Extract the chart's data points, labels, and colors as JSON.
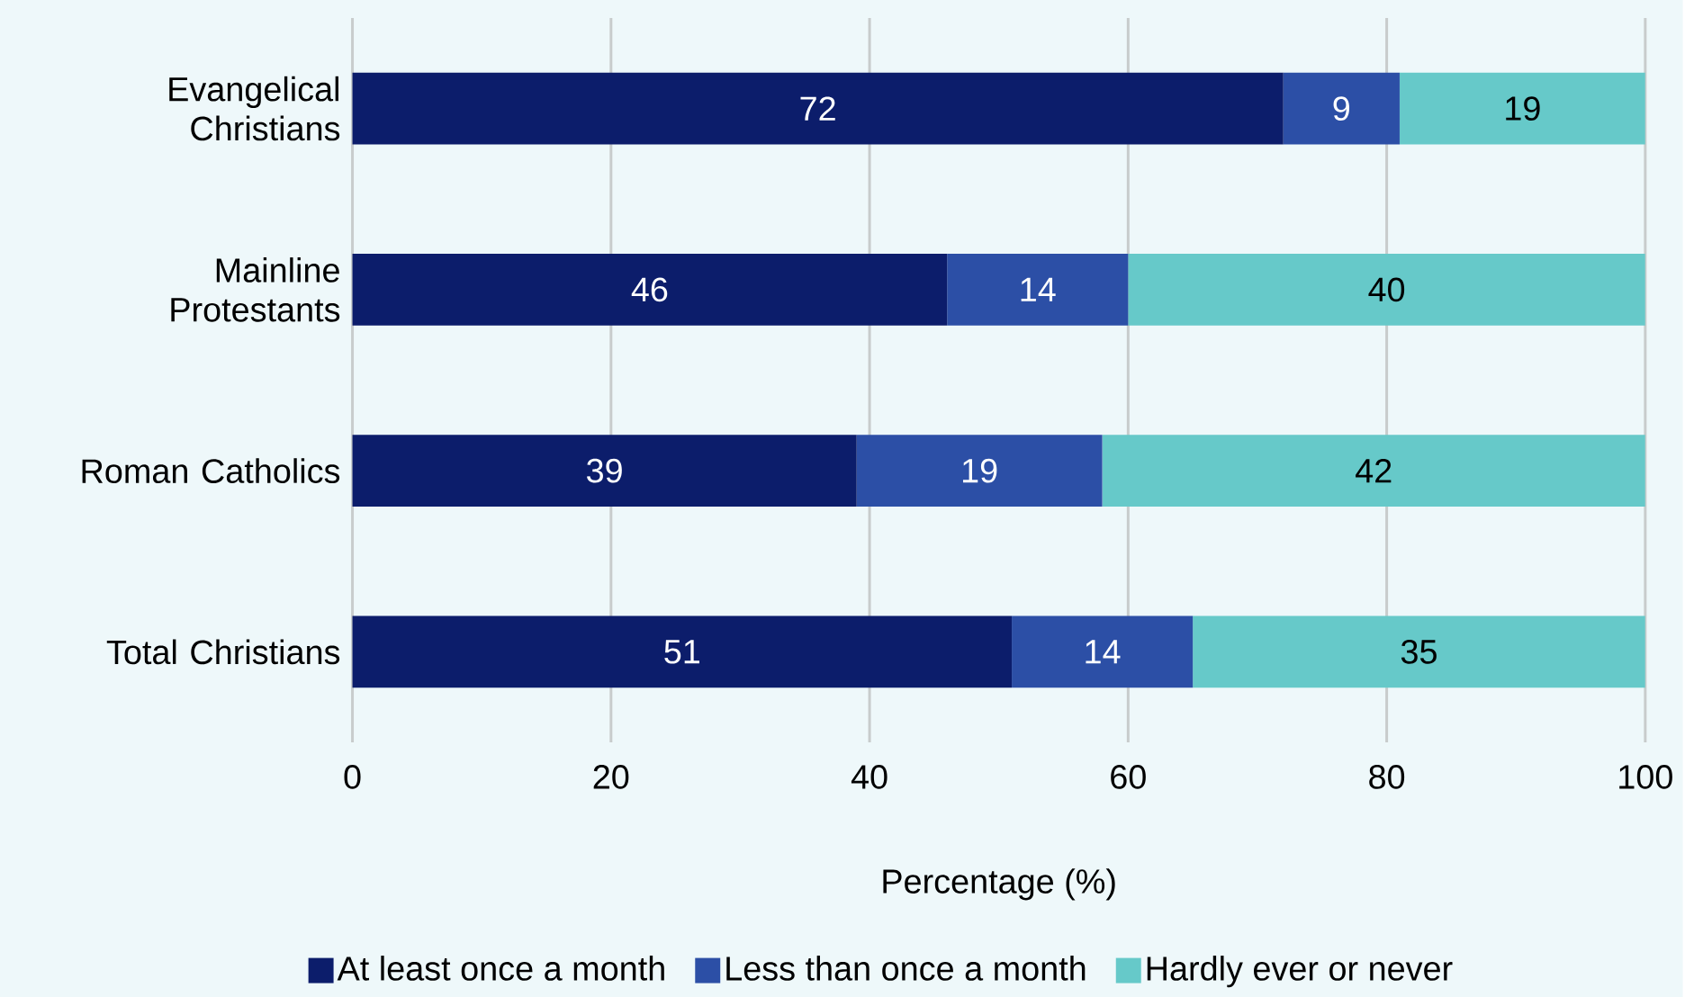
{
  "chart_data": {
    "type": "bar",
    "orientation": "horizontal",
    "stacked": true,
    "categories": [
      "Evangelical Christians",
      "Mainline Protestants",
      "Roman Catholics",
      "Total Christians"
    ],
    "series": [
      {
        "name": "At least once a month",
        "color": "#0c1d6b",
        "values": [
          72,
          46,
          39,
          51
        ]
      },
      {
        "name": "Less than once a month",
        "color": "#2c4fa6",
        "values": [
          9,
          14,
          19,
          14
        ]
      },
      {
        "name": "Hardly ever or never",
        "color": "#66c9c9",
        "values": [
          19,
          40,
          42,
          35
        ]
      }
    ],
    "xlabel": "Percentage (%)",
    "xlim": [
      0,
      100
    ],
    "xticks": [
      0,
      20,
      40,
      60,
      80,
      100
    ],
    "grid": "x",
    "legend": "bottom",
    "data_labels": true
  }
}
